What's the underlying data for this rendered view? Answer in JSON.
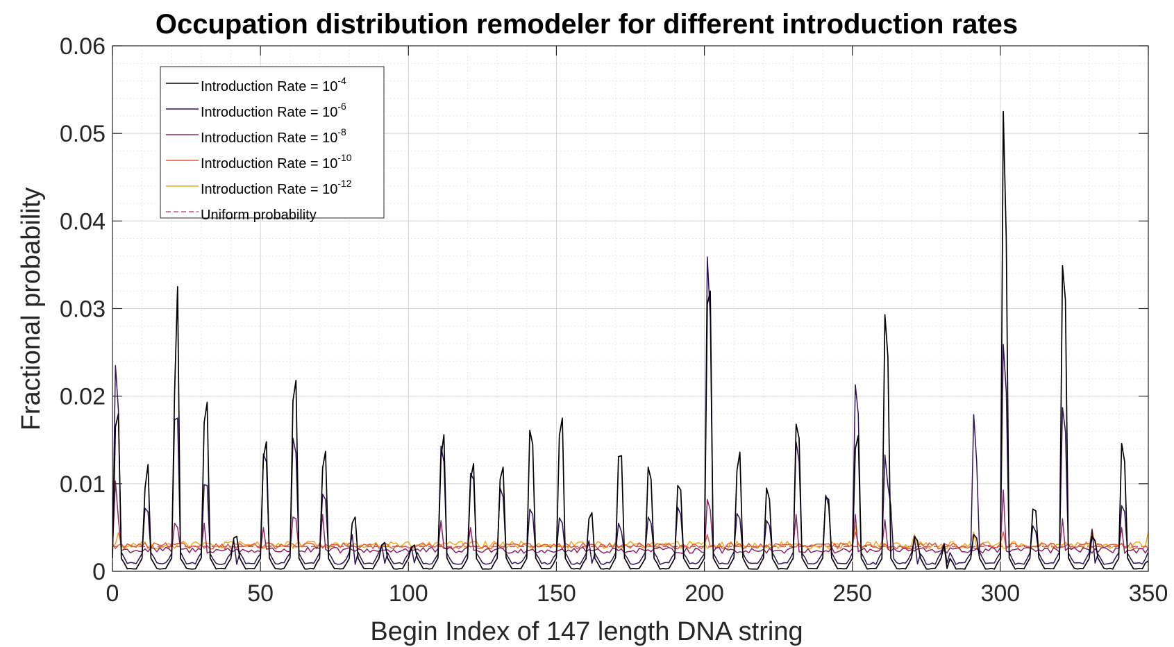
{
  "chart_data": {
    "type": "line",
    "title": "Occupation distribution remodeler for different introduction rates",
    "xlabel": "Begin Index of 147 length DNA string",
    "ylabel": "Fractional probability",
    "xlim": [
      0,
      350
    ],
    "ylim": [
      0,
      0.06
    ],
    "xticks": [
      0,
      50,
      100,
      150,
      200,
      250,
      300,
      350
    ],
    "xtick_labels": [
      "0",
      "50",
      "100",
      "150",
      "200",
      "250",
      "300",
      "350"
    ],
    "yticks": [
      0,
      0.01,
      0.02,
      0.03,
      0.04,
      0.05,
      0.06
    ],
    "ytick_labels": [
      "0",
      "0.01",
      "0.02",
      "0.03",
      "0.04",
      "0.05",
      "0.06"
    ],
    "grid": true,
    "minor_grid": true,
    "legend_position": "top-left",
    "uniform_value": 0.00283,
    "period": 10,
    "series": [
      {
        "name": "Introduction Rate = 10",
        "exponent": "-4",
        "color": "#000000",
        "style": "solid",
        "baseline": 0.0003,
        "noise": 5e-05,
        "peaks": [
          [
            1,
            0.0165
          ],
          [
            2,
            0.018
          ],
          [
            11,
            0.0095
          ],
          [
            12,
            0.0122
          ],
          [
            21,
            0.0205
          ],
          [
            22,
            0.0325
          ],
          [
            31,
            0.017
          ],
          [
            32,
            0.0193
          ],
          [
            41,
            0.0038
          ],
          [
            42,
            0.004
          ],
          [
            51,
            0.013
          ],
          [
            52,
            0.0148
          ],
          [
            61,
            0.0195
          ],
          [
            62,
            0.0218
          ],
          [
            71,
            0.0118
          ],
          [
            72,
            0.0137
          ],
          [
            81,
            0.0055
          ],
          [
            82,
            0.0062
          ],
          [
            91,
            0.003
          ],
          [
            92,
            0.0033
          ],
          [
            101,
            0.0027
          ],
          [
            102,
            0.003
          ],
          [
            111,
            0.013
          ],
          [
            112,
            0.0156
          ],
          [
            121,
            0.0105
          ],
          [
            122,
            0.0123
          ],
          [
            131,
            0.0105
          ],
          [
            132,
            0.0119
          ],
          [
            141,
            0.0161
          ],
          [
            142,
            0.0145
          ],
          [
            151,
            0.0155
          ],
          [
            152,
            0.0175
          ],
          [
            161,
            0.006
          ],
          [
            162,
            0.0067
          ],
          [
            171,
            0.0131
          ],
          [
            172,
            0.0132
          ],
          [
            181,
            0.0119
          ],
          [
            182,
            0.0105
          ],
          [
            191,
            0.0098
          ],
          [
            192,
            0.0093
          ],
          [
            201,
            0.0305
          ],
          [
            202,
            0.032
          ],
          [
            211,
            0.0115
          ],
          [
            212,
            0.0136
          ],
          [
            221,
            0.0095
          ],
          [
            222,
            0.0082
          ],
          [
            231,
            0.0168
          ],
          [
            232,
            0.0152
          ],
          [
            241,
            0.0085
          ],
          [
            242,
            0.0082
          ],
          [
            251,
            0.014
          ],
          [
            252,
            0.0155
          ],
          [
            261,
            0.0293
          ],
          [
            262,
            0.0245
          ],
          [
            271,
            0.004
          ],
          [
            272,
            0.0035
          ],
          [
            281,
            0.003
          ],
          [
            291,
            0.0042
          ],
          [
            292,
            0.0038
          ],
          [
            301,
            0.0525
          ],
          [
            302,
            0.038
          ],
          [
            311,
            0.0071
          ],
          [
            312,
            0.0069
          ],
          [
            321,
            0.0349
          ],
          [
            322,
            0.031
          ],
          [
            331,
            0.004
          ],
          [
            332,
            0.0035
          ],
          [
            341,
            0.0146
          ],
          [
            342,
            0.0125
          ],
          [
            350,
            0.0012
          ]
        ]
      },
      {
        "name": "Introduction Rate = 10",
        "exponent": "-6",
        "color": "#2e1158",
        "style": "solid",
        "baseline": 0.0009,
        "noise": 0.00012,
        "peaks": [
          [
            1,
            0.0235
          ],
          [
            2,
            0.0185
          ],
          [
            11,
            0.0072
          ],
          [
            12,
            0.0068
          ],
          [
            21,
            0.0173
          ],
          [
            22,
            0.0175
          ],
          [
            31,
            0.0099
          ],
          [
            32,
            0.0098
          ],
          [
            41,
            0.0035
          ],
          [
            51,
            0.0134
          ],
          [
            52,
            0.0125
          ],
          [
            61,
            0.0152
          ],
          [
            62,
            0.0135
          ],
          [
            71,
            0.0088
          ],
          [
            72,
            0.0082
          ],
          [
            81,
            0.0042
          ],
          [
            91,
            0.003
          ],
          [
            101,
            0.0028
          ],
          [
            111,
            0.0143
          ],
          [
            112,
            0.0125
          ],
          [
            121,
            0.0112
          ],
          [
            122,
            0.0105
          ],
          [
            131,
            0.0095
          ],
          [
            132,
            0.0085
          ],
          [
            141,
            0.0071
          ],
          [
            142,
            0.0065
          ],
          [
            151,
            0.0061
          ],
          [
            152,
            0.0055
          ],
          [
            161,
            0.0035
          ],
          [
            171,
            0.0055
          ],
          [
            172,
            0.0045
          ],
          [
            181,
            0.0062
          ],
          [
            182,
            0.0055
          ],
          [
            191,
            0.0073
          ],
          [
            192,
            0.0065
          ],
          [
            201,
            0.0359
          ],
          [
            202,
            0.029
          ],
          [
            211,
            0.0066
          ],
          [
            212,
            0.006
          ],
          [
            221,
            0.0058
          ],
          [
            222,
            0.0052
          ],
          [
            231,
            0.0148
          ],
          [
            232,
            0.0125
          ],
          [
            241,
            0.0087
          ],
          [
            242,
            0.0075
          ],
          [
            251,
            0.0213
          ],
          [
            252,
            0.018
          ],
          [
            261,
            0.0133
          ],
          [
            262,
            0.0098
          ],
          [
            263,
            0.0075
          ],
          [
            271,
            0.0038
          ],
          [
            281,
            0.0032
          ],
          [
            291,
            0.0179
          ],
          [
            292,
            0.0125
          ],
          [
            301,
            0.0259
          ],
          [
            302,
            0.0205
          ],
          [
            311,
            0.0052
          ],
          [
            312,
            0.0045
          ],
          [
            321,
            0.0187
          ],
          [
            322,
            0.016
          ],
          [
            331,
            0.0048
          ],
          [
            341,
            0.0075
          ],
          [
            342,
            0.0068
          ]
        ]
      },
      {
        "name": "Introduction Rate = 10",
        "exponent": "-8",
        "color": "#8a2367",
        "style": "solid",
        "baseline": 0.0024,
        "noise": 0.00035,
        "peaks": [
          [
            1,
            0.0103
          ],
          [
            2,
            0.006
          ],
          [
            21,
            0.0055
          ],
          [
            22,
            0.005
          ],
          [
            31,
            0.0055
          ],
          [
            51,
            0.005
          ],
          [
            61,
            0.0062
          ],
          [
            62,
            0.006
          ],
          [
            71,
            0.0065
          ],
          [
            111,
            0.0058
          ],
          [
            121,
            0.005
          ],
          [
            201,
            0.0082
          ],
          [
            202,
            0.007
          ],
          [
            231,
            0.0065
          ],
          [
            251,
            0.0065
          ],
          [
            261,
            0.0059
          ],
          [
            301,
            0.0093
          ],
          [
            321,
            0.006
          ],
          [
            341,
            0.005
          ]
        ]
      },
      {
        "name": "Introduction Rate = 10",
        "exponent": "-10",
        "color": "#e05a3a",
        "style": "solid",
        "baseline": 0.0029,
        "noise": 0.00035,
        "peaks": [
          [
            201,
            0.0042
          ],
          [
            251,
            0.0045
          ],
          [
            301,
            0.0045
          ]
        ]
      },
      {
        "name": "Introduction Rate = 10",
        "exponent": "-12",
        "color": "#f2a81d",
        "style": "solid",
        "baseline": 0.003,
        "noise": 0.00045,
        "peaks": [
          [
            2,
            0.0044
          ],
          [
            251,
            0.0052
          ],
          [
            271,
            0.0042
          ],
          [
            291,
            0.0045
          ],
          [
            331,
            0.0048
          ],
          [
            350,
            0.0045
          ]
        ]
      },
      {
        "name": "Uniform probability",
        "exponent": "",
        "color": "#c2566f",
        "style": "dashed",
        "constant": 0.00283
      }
    ]
  }
}
